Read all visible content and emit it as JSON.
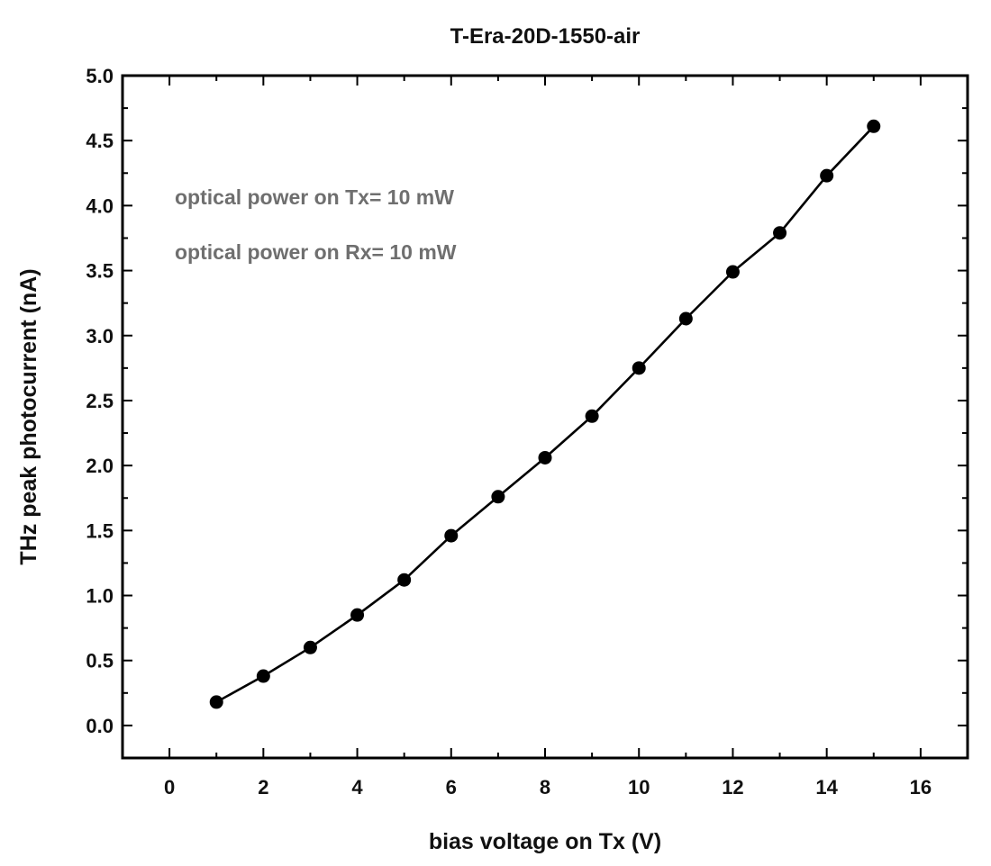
{
  "chart_data": {
    "type": "line",
    "title": "T-Era-20D-1550-air",
    "xlabel": "bias voltage on Tx (V)",
    "ylabel": "THz peak photocurrent (nA)",
    "xlim": [
      -1,
      17
    ],
    "ylim": [
      -0.25,
      5.0
    ],
    "x_ticks": [
      0,
      2,
      4,
      6,
      8,
      10,
      12,
      14,
      16
    ],
    "x_tick_labels": [
      "0",
      "2",
      "4",
      "6",
      "8",
      "10",
      "12",
      "14",
      "16"
    ],
    "y_ticks": [
      0.0,
      0.5,
      1.0,
      1.5,
      2.0,
      2.5,
      3.0,
      3.5,
      4.0,
      4.5,
      5.0
    ],
    "y_tick_labels": [
      "0.0",
      "0.5",
      "1.0",
      "1.5",
      "2.0",
      "2.5",
      "3.0",
      "3.5",
      "4.0",
      "4.5",
      "5.0"
    ],
    "grid": false,
    "annotations": [
      "optical power on Tx= 10 mW",
      "optical power on Rx= 10 mW"
    ],
    "series": [
      {
        "x": [
          1,
          2,
          3,
          4,
          5,
          6,
          7,
          8,
          9,
          10,
          11,
          12,
          13,
          14,
          15
        ],
        "y": [
          0.18,
          0.38,
          0.6,
          0.85,
          1.12,
          1.46,
          1.76,
          2.06,
          2.38,
          2.75,
          3.13,
          3.49,
          3.79,
          4.23,
          4.61
        ],
        "color": "#000000",
        "marker": "circle"
      }
    ]
  }
}
